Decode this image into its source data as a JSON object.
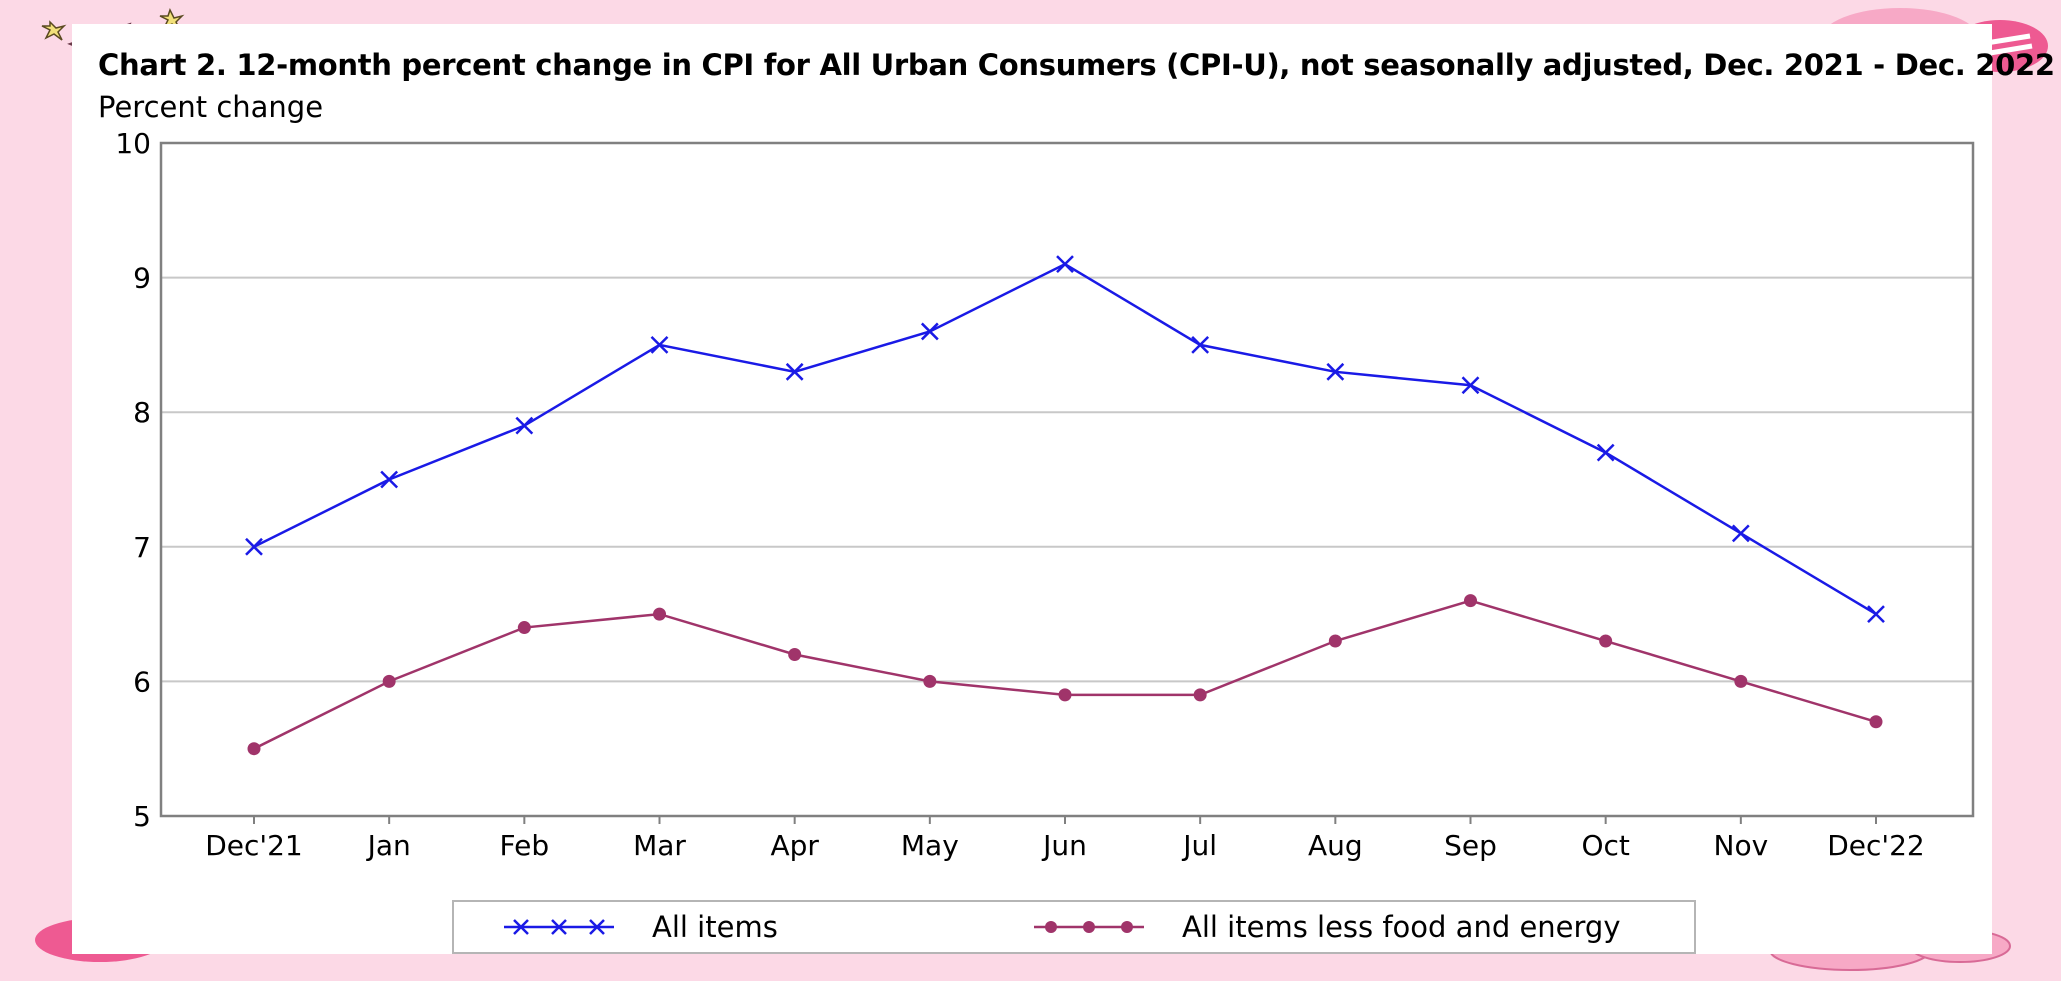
{
  "chart_data": {
    "type": "line",
    "title": "Chart 2. 12-month percent change in CPI for All Urban Consumers (CPI-U), not seasonally adjusted, Dec. 2021 - Dec. 2022",
    "ylabel": "Percent change",
    "xlabel": "",
    "categories": [
      "Dec'21",
      "Jan",
      "Feb",
      "Mar",
      "Apr",
      "May",
      "Jun",
      "Jul",
      "Aug",
      "Sep",
      "Oct",
      "Nov",
      "Dec'22"
    ],
    "ylim": [
      5,
      10
    ],
    "yticks": [
      "5",
      "6",
      "7",
      "8",
      "9",
      "10"
    ],
    "grid": true,
    "legend_position": "bottom",
    "series": [
      {
        "name": "All items",
        "values": [
          7.0,
          7.5,
          7.9,
          8.5,
          8.3,
          8.6,
          9.1,
          8.5,
          8.3,
          8.2,
          7.7,
          7.1,
          6.5
        ],
        "color": "#1a1ae6",
        "marker": "x-marker"
      },
      {
        "name": "All items less food and energy",
        "values": [
          5.5,
          6.0,
          6.4,
          6.5,
          6.2,
          6.0,
          5.9,
          5.9,
          6.3,
          6.6,
          6.3,
          6.0,
          5.7
        ],
        "color": "#a0346a",
        "marker": "dot-marker"
      }
    ]
  },
  "colors": {
    "background": "#fcd9e6",
    "card": "#ffffff",
    "grid": "#c8c8c8",
    "axis": "#808080"
  }
}
